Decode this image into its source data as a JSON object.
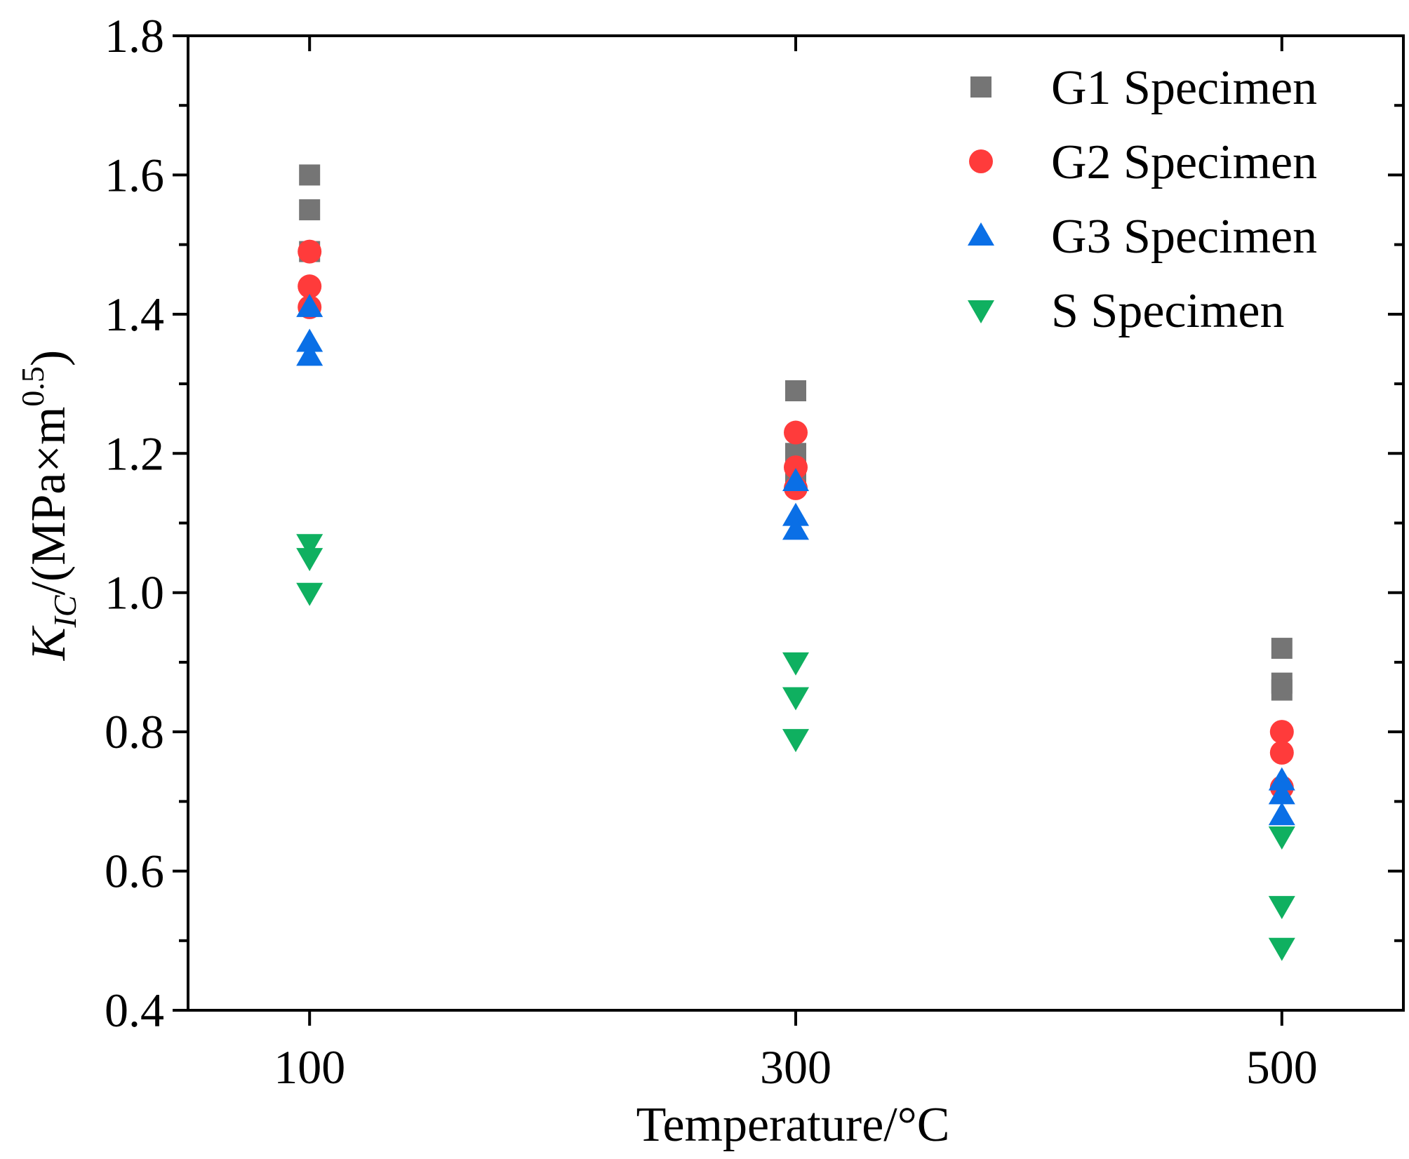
{
  "chart_data": {
    "type": "scatter",
    "title": "",
    "xlabel": "Temperature/°C",
    "ylabel": {
      "symbol": "K",
      "subscript": "IC",
      "unit_prefix": "/(MPa×m",
      "superscript": "0.5",
      "unit_suffix": ")"
    },
    "xlim": [
      50,
      550
    ],
    "ylim": [
      0.4,
      1.8
    ],
    "x_ticks": [
      100,
      300,
      500
    ],
    "x_tick_labels": [
      "100",
      "300",
      "500"
    ],
    "y_ticks": [
      0.4,
      0.6,
      0.8,
      1.0,
      1.2,
      1.4,
      1.6,
      1.8
    ],
    "y_tick_labels": [
      "0.4",
      "0.6",
      "0.8",
      "1.0",
      "1.2",
      "1.4",
      "1.6",
      "1.8"
    ],
    "y_minor_step": 0.1,
    "grid": false,
    "legend_position": "top-right",
    "series": [
      {
        "name": "G1 Specimen",
        "marker": "square",
        "color": "#757575",
        "points": [
          {
            "x": 100,
            "y": 1.6
          },
          {
            "x": 100,
            "y": 1.55
          },
          {
            "x": 100,
            "y": 1.49
          },
          {
            "x": 300,
            "y": 1.29
          },
          {
            "x": 300,
            "y": 1.2
          },
          {
            "x": 300,
            "y": 1.16
          },
          {
            "x": 500,
            "y": 0.92
          },
          {
            "x": 500,
            "y": 0.87
          },
          {
            "x": 500,
            "y": 0.86
          }
        ]
      },
      {
        "name": "G2 Specimen",
        "marker": "circle",
        "color": "#ff3b3b",
        "points": [
          {
            "x": 100,
            "y": 1.49
          },
          {
            "x": 100,
            "y": 1.44
          },
          {
            "x": 100,
            "y": 1.41
          },
          {
            "x": 300,
            "y": 1.23
          },
          {
            "x": 300,
            "y": 1.18
          },
          {
            "x": 300,
            "y": 1.15
          },
          {
            "x": 500,
            "y": 0.8
          },
          {
            "x": 500,
            "y": 0.77
          },
          {
            "x": 500,
            "y": 0.72
          }
        ]
      },
      {
        "name": "G3 Specimen",
        "marker": "triangle-up",
        "color": "#0a6fe6",
        "points": [
          {
            "x": 100,
            "y": 1.41
          },
          {
            "x": 100,
            "y": 1.36
          },
          {
            "x": 100,
            "y": 1.34
          },
          {
            "x": 300,
            "y": 1.16
          },
          {
            "x": 300,
            "y": 1.11
          },
          {
            "x": 300,
            "y": 1.09
          },
          {
            "x": 500,
            "y": 0.73
          },
          {
            "x": 500,
            "y": 0.71
          },
          {
            "x": 500,
            "y": 0.68
          }
        ]
      },
      {
        "name": "S Specimen",
        "marker": "triangle-down",
        "color": "#0fb060",
        "points": [
          {
            "x": 100,
            "y": 1.07
          },
          {
            "x": 100,
            "y": 1.05
          },
          {
            "x": 100,
            "y": 1.0
          },
          {
            "x": 300,
            "y": 0.9
          },
          {
            "x": 300,
            "y": 0.85
          },
          {
            "x": 300,
            "y": 0.79
          },
          {
            "x": 500,
            "y": 0.65
          },
          {
            "x": 500,
            "y": 0.55
          },
          {
            "x": 500,
            "y": 0.49
          }
        ]
      }
    ]
  }
}
